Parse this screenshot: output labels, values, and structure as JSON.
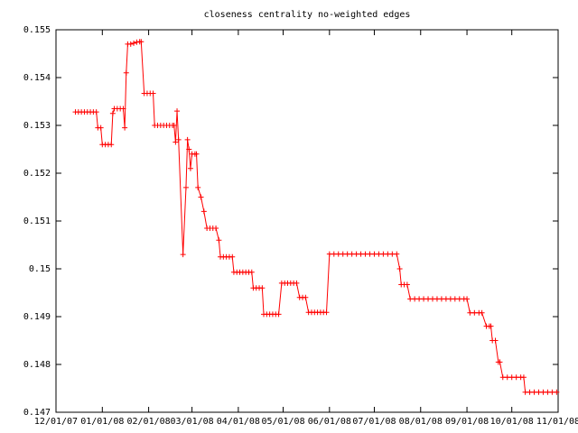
{
  "chart_data": {
    "type": "line",
    "title": "closeness centrality no-weighted edges",
    "x": [
      13,
      15,
      17,
      19,
      21,
      23,
      25,
      27,
      28,
      30,
      31,
      33,
      35,
      37,
      38,
      39,
      41,
      43,
      45,
      46,
      47,
      48,
      50,
      52,
      54,
      56,
      57,
      59,
      61,
      63,
      65,
      66,
      68,
      70,
      72,
      74,
      76,
      78,
      79,
      80,
      81,
      82,
      85,
      87,
      88,
      89,
      90,
      91,
      93,
      94,
      95,
      97,
      99,
      101,
      103,
      105,
      107,
      109,
      110,
      112,
      114,
      116,
      118,
      119,
      121,
      123,
      125,
      127,
      129,
      131,
      132,
      134,
      136,
      138,
      139,
      141,
      143,
      145,
      147,
      149,
      151,
      153,
      155,
      157,
      159,
      161,
      163,
      165,
      167,
      169,
      171,
      173,
      175,
      177,
      179,
      181,
      183,
      186,
      189,
      192,
      195,
      198,
      201,
      204,
      207,
      210,
      213,
      216,
      219,
      222,
      225,
      228,
      230,
      231,
      233,
      235,
      237,
      240,
      243,
      246,
      249,
      252,
      255,
      258,
      261,
      264,
      267,
      270,
      273,
      275,
      277,
      280,
      283,
      285,
      288,
      290,
      291,
      292,
      294,
      296,
      297,
      299,
      302,
      305,
      308,
      311,
      313,
      314,
      317,
      320,
      323,
      326,
      329,
      332,
      335
    ],
    "series": [
      {
        "color": "#ff0000",
        "values": [
          0.15328,
          0.15328,
          0.15328,
          0.15328,
          0.15328,
          0.15328,
          0.15328,
          0.15328,
          0.15295,
          0.15295,
          0.1526,
          0.1526,
          0.1526,
          0.1526,
          0.15325,
          0.15335,
          0.15335,
          0.15335,
          0.15335,
          0.15295,
          0.1541,
          0.1547,
          0.1547,
          0.15472,
          0.15474,
          0.15475,
          0.15475,
          0.15367,
          0.15367,
          0.15367,
          0.15367,
          0.153,
          0.153,
          0.153,
          0.153,
          0.153,
          0.153,
          0.153,
          0.153,
          0.15265,
          0.1533,
          0.1527,
          0.1503,
          0.1517,
          0.1527,
          0.1525,
          0.1521,
          0.1524,
          0.1524,
          0.1524,
          0.1517,
          0.1515,
          0.1512,
          0.15085,
          0.15085,
          0.15085,
          0.15085,
          0.1506,
          0.15025,
          0.15025,
          0.15025,
          0.15025,
          0.15025,
          0.14993,
          0.14993,
          0.14993,
          0.14993,
          0.14993,
          0.14993,
          0.14993,
          0.1496,
          0.1496,
          0.1496,
          0.1496,
          0.14905,
          0.14905,
          0.14905,
          0.14905,
          0.14905,
          0.14905,
          0.1497,
          0.1497,
          0.1497,
          0.1497,
          0.1497,
          0.1497,
          0.1494,
          0.1494,
          0.1494,
          0.14909,
          0.14909,
          0.14909,
          0.14909,
          0.14909,
          0.14909,
          0.14909,
          0.15031,
          0.15031,
          0.15031,
          0.15031,
          0.15031,
          0.15031,
          0.15031,
          0.15031,
          0.15031,
          0.15031,
          0.15031,
          0.15031,
          0.15031,
          0.15031,
          0.15031,
          0.15031,
          0.15,
          0.14967,
          0.14967,
          0.14967,
          0.14937,
          0.14937,
          0.14937,
          0.14937,
          0.14937,
          0.14937,
          0.14937,
          0.14937,
          0.14937,
          0.14937,
          0.14937,
          0.14937,
          0.14937,
          0.14937,
          0.14908,
          0.14908,
          0.14908,
          0.14908,
          0.1488,
          0.1488,
          0.1488,
          0.1485,
          0.1485,
          0.14805,
          0.14805,
          0.14773,
          0.14773,
          0.14773,
          0.14773,
          0.14773,
          0.14773,
          0.14742,
          0.14742,
          0.14742,
          0.14742,
          0.14742,
          0.14742,
          0.14742,
          0.14742
        ]
      }
    ],
    "xlim": [
      0,
      336
    ],
    "xticks": [
      {
        "value": 0,
        "label": "12/01/07"
      },
      {
        "value": 31,
        "label": "01/01/08"
      },
      {
        "value": 62,
        "label": "02/01/08"
      },
      {
        "value": 91,
        "label": "03/01/08"
      },
      {
        "value": 122,
        "label": "04/01/08"
      },
      {
        "value": 152,
        "label": "05/01/08"
      },
      {
        "value": 183,
        "label": "06/01/08"
      },
      {
        "value": 213,
        "label": "07/01/08"
      },
      {
        "value": 244,
        "label": "08/01/08"
      },
      {
        "value": 275,
        "label": "09/01/08"
      },
      {
        "value": 305,
        "label": "10/01/08"
      },
      {
        "value": 336,
        "label": "11/01/08"
      }
    ],
    "ylim": [
      0.147,
      0.155
    ],
    "yticks": [
      0.147,
      0.148,
      0.149,
      0.15,
      0.151,
      0.152,
      0.153,
      0.154,
      0.155
    ],
    "grid": false
  }
}
